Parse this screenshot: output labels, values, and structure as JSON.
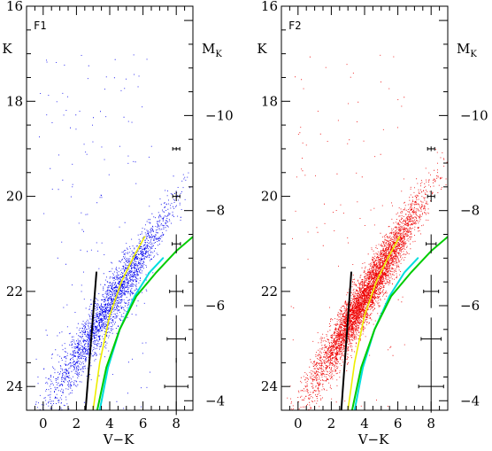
{
  "chart_data": [
    {
      "type": "scatter",
      "panel_label": "F1",
      "point_color": "#0000ee",
      "xlabel": "V−K",
      "ylabel": "K",
      "y2label_main": "M",
      "y2label_sub": "K",
      "xlim": [
        -1,
        9
      ],
      "ylim": [
        24.5,
        16
      ],
      "xticks": [
        "0",
        "2",
        "4",
        "6",
        "8"
      ],
      "yticks": [
        "16",
        "18",
        "20",
        "22",
        "24"
      ],
      "y2ticks": [
        "−10",
        "−8",
        "−6",
        "−4"
      ],
      "y2_values": [
        -10,
        -8,
        -6,
        -4
      ],
      "distance_modulus": 28.3,
      "point_cloud": {
        "description_counts": 2600,
        "k_mean": 22.3,
        "k_sd": 1.05,
        "k_range": [
          17.5,
          24.5
        ],
        "color_zero_k": 24.6,
        "color_slope": -0.58,
        "color_sd": 0.55,
        "field_fraction": 0.06
      },
      "error_bars": [
        {
          "k": 19,
          "x_err": 0.1,
          "k_err": 0.03
        },
        {
          "k": 20,
          "x_err": 0.15,
          "k_err": 0.1
        },
        {
          "k": 21,
          "x_err": 0.25,
          "k_err": 0.2
        },
        {
          "k": 22,
          "x_err": 0.4,
          "k_err": 0.35
        },
        {
          "k": 23,
          "x_err": 0.55,
          "k_err": 0.5
        },
        {
          "k": 24,
          "x_err": 0.7,
          "k_err": 0.6
        }
      ],
      "lines": [
        {
          "color": "#000000",
          "width": 2,
          "x": [
            2.55,
            3.2
          ],
          "y": [
            24.5,
            21.6
          ]
        },
        {
          "color": "#eeee00",
          "width": 1.6,
          "x": [
            3.0,
            3.4,
            4.0,
            4.7,
            5.4,
            6.1
          ],
          "y": [
            24.5,
            23.5,
            22.5,
            21.8,
            21.3,
            20.85
          ]
        },
        {
          "color": "#00dddd",
          "width": 2,
          "x": [
            3.4,
            3.9,
            4.6,
            5.5,
            6.4,
            7.2
          ],
          "y": [
            24.5,
            23.6,
            22.8,
            22.1,
            21.6,
            21.3
          ]
        },
        {
          "color": "#00cc00",
          "width": 2,
          "x": [
            3.25,
            3.8,
            4.6,
            5.6,
            6.8,
            8.0,
            9.0
          ],
          "y": [
            24.5,
            23.6,
            22.8,
            22.1,
            21.6,
            21.15,
            20.85
          ]
        }
      ]
    },
    {
      "type": "scatter",
      "panel_label": "F2",
      "point_color": "#ee0000",
      "xlabel": "V−K",
      "ylabel": "K",
      "y2label_main": "M",
      "y2label_sub": "K",
      "xlim": [
        -1,
        9
      ],
      "ylim": [
        24.5,
        16
      ],
      "xticks": [
        "0",
        "2",
        "4",
        "6",
        "8"
      ],
      "yticks": [
        "16",
        "18",
        "20",
        "22",
        "24"
      ],
      "y2ticks": [
        "−10",
        "−8",
        "−6",
        "−4"
      ],
      "y2_values": [
        -10,
        -8,
        -6,
        -4
      ],
      "distance_modulus": 28.3,
      "point_cloud": {
        "description_counts": 5200,
        "k_mean": 22.1,
        "k_sd": 1.0,
        "k_range": [
          18.3,
          24.5
        ],
        "color_zero_k": 24.6,
        "color_slope": -0.62,
        "color_sd": 0.5,
        "field_fraction": 0.02
      },
      "error_bars": [
        {
          "k": 19,
          "x_err": 0.1,
          "k_err": 0.05
        },
        {
          "k": 20,
          "x_err": 0.2,
          "k_err": 0.12
        },
        {
          "k": 21,
          "x_err": 0.3,
          "k_err": 0.2
        },
        {
          "k": 22,
          "x_err": 0.45,
          "k_err": 0.35
        },
        {
          "k": 23,
          "x_err": 0.6,
          "k_err": 0.45
        },
        {
          "k": 24,
          "x_err": 0.75,
          "k_err": 0.55
        }
      ],
      "lines": [
        {
          "color": "#000000",
          "width": 2,
          "x": [
            2.6,
            3.2
          ],
          "y": [
            24.5,
            21.6
          ]
        },
        {
          "color": "#eeee00",
          "width": 1.6,
          "x": [
            3.0,
            3.4,
            4.0,
            4.7,
            5.4,
            6.1
          ],
          "y": [
            24.5,
            23.5,
            22.5,
            21.8,
            21.3,
            20.85
          ]
        },
        {
          "color": "#00dddd",
          "width": 2,
          "x": [
            3.4,
            3.9,
            4.6,
            5.5,
            6.4,
            7.2
          ],
          "y": [
            24.5,
            23.6,
            22.8,
            22.1,
            21.6,
            21.3
          ]
        },
        {
          "color": "#00cc00",
          "width": 2,
          "x": [
            3.25,
            3.8,
            4.6,
            5.6,
            6.8,
            8.0,
            9.0
          ],
          "y": [
            24.5,
            23.6,
            22.8,
            22.1,
            21.6,
            21.15,
            20.85
          ]
        }
      ]
    }
  ]
}
